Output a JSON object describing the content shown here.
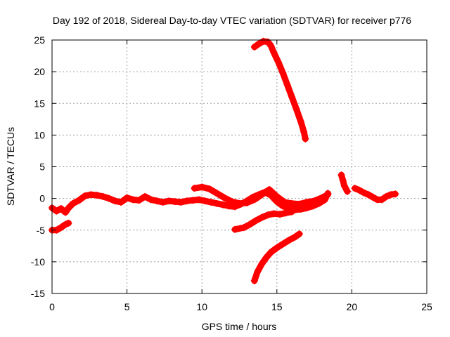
{
  "chart_data": {
    "type": "scatter",
    "title": "Day 192 of 2018, Sidereal Day-to-day VTEC variation (SDTVAR) for receiver p776",
    "xlabel": "GPS time / hours",
    "ylabel": "SDTVAR / TECUs",
    "xlim": [
      0,
      25
    ],
    "ylim": [
      -15,
      25
    ],
    "xticks": [
      0,
      5,
      10,
      15,
      20,
      25
    ],
    "yticks": [
      -15,
      -10,
      -5,
      0,
      5,
      10,
      15,
      20,
      25
    ],
    "grid": true,
    "marker": "+",
    "color": "#ff0000",
    "series": [
      {
        "points": [
          [
            0,
            -1.5
          ],
          [
            0.3,
            -2.0
          ],
          [
            0.6,
            -1.6
          ],
          [
            0.9,
            -2.2
          ],
          [
            1.1,
            -1.5
          ],
          [
            1.4,
            -0.8
          ],
          [
            1.8,
            -0.3
          ],
          [
            2.2,
            0.4
          ],
          [
            2.6,
            0.6
          ],
          [
            3.0,
            0.5
          ],
          [
            3.4,
            0.3
          ],
          [
            3.8,
            0.0
          ],
          [
            4.2,
            -0.4
          ],
          [
            4.6,
            -0.6
          ],
          [
            5.0,
            0.1
          ],
          [
            5.4,
            -0.2
          ],
          [
            5.8,
            -0.3
          ],
          [
            6.2,
            0.3
          ],
          [
            6.6,
            -0.2
          ],
          [
            7.0,
            -0.4
          ],
          [
            7.4,
            -0.6
          ],
          [
            7.8,
            -0.4
          ],
          [
            8.2,
            -0.5
          ],
          [
            8.6,
            -0.6
          ],
          [
            9.0,
            -0.4
          ],
          [
            9.4,
            -0.3
          ],
          [
            9.8,
            -0.2
          ],
          [
            10.2,
            -0.4
          ],
          [
            10.6,
            -0.6
          ],
          [
            11.0,
            -0.8
          ],
          [
            11.4,
            -1.0
          ],
          [
            11.8,
            -1.2
          ],
          [
            12.2,
            -1.3
          ],
          [
            12.6,
            -0.9
          ],
          [
            13.0,
            -0.4
          ],
          [
            13.4,
            0.2
          ],
          [
            13.8,
            0.6
          ],
          [
            14.2,
            1.0
          ],
          [
            14.6,
            0.5
          ],
          [
            15.0,
            -0.5
          ],
          [
            15.4,
            -1.2
          ],
          [
            15.8,
            -1.6
          ],
          [
            16.2,
            -1.8
          ],
          [
            16.6,
            -1.7
          ],
          [
            17.0,
            -1.5
          ],
          [
            17.4,
            -1.2
          ],
          [
            17.8,
            -0.8
          ],
          [
            18.2,
            -0.2
          ],
          [
            18.4,
            0.8
          ]
        ]
      },
      {
        "points": [
          [
            0,
            -5.0
          ],
          [
            0.3,
            -5.0
          ],
          [
            0.6,
            -4.6
          ],
          [
            0.9,
            -4.1
          ],
          [
            1.1,
            -3.9
          ]
        ]
      },
      {
        "points": [
          [
            9.5,
            1.6
          ],
          [
            10.0,
            1.8
          ],
          [
            10.5,
            1.5
          ],
          [
            11.0,
            0.8
          ],
          [
            11.5,
            0.1
          ],
          [
            12.0,
            -0.5
          ],
          [
            12.5,
            -0.8
          ],
          [
            13.0,
            -0.7
          ],
          [
            13.5,
            -0.2
          ],
          [
            14.0,
            0.6
          ],
          [
            14.5,
            1.4
          ],
          [
            15.0,
            0.3
          ],
          [
            15.5,
            -0.6
          ],
          [
            16.0,
            -0.8
          ],
          [
            16.5,
            -0.9
          ],
          [
            17.0,
            -0.6
          ],
          [
            17.5,
            -0.4
          ],
          [
            18.0,
            0.1
          ],
          [
            18.4,
            0.6
          ]
        ]
      },
      {
        "points": [
          [
            12.2,
            -4.9
          ],
          [
            12.8,
            -4.6
          ],
          [
            13.2,
            -4.1
          ],
          [
            13.6,
            -3.5
          ],
          [
            14.0,
            -3.0
          ],
          [
            14.4,
            -2.6
          ],
          [
            14.8,
            -2.4
          ],
          [
            15.2,
            -2.5
          ],
          [
            15.6,
            -2.3
          ],
          [
            16.0,
            -2.1
          ]
        ]
      },
      {
        "points": [
          [
            13.5,
            -13.0
          ],
          [
            13.7,
            -11.6
          ],
          [
            14.0,
            -10.3
          ],
          [
            14.3,
            -9.3
          ],
          [
            14.6,
            -8.5
          ],
          [
            15.0,
            -7.8
          ],
          [
            15.4,
            -7.2
          ],
          [
            15.8,
            -6.6
          ],
          [
            16.2,
            -6.1
          ],
          [
            16.5,
            -5.6
          ]
        ]
      },
      {
        "points": [
          [
            13.5,
            23.9
          ],
          [
            13.8,
            24.4
          ],
          [
            14.1,
            24.8
          ],
          [
            14.4,
            24.7
          ],
          [
            14.6,
            24.1
          ],
          [
            14.8,
            23.0
          ],
          [
            15.1,
            21.5
          ],
          [
            15.4,
            19.8
          ],
          [
            15.7,
            17.9
          ],
          [
            16.0,
            16.0
          ],
          [
            16.3,
            14.1
          ],
          [
            16.6,
            12.1
          ],
          [
            16.8,
            10.5
          ],
          [
            16.9,
            9.4
          ]
        ]
      },
      {
        "points": [
          [
            19.3,
            3.7
          ],
          [
            19.4,
            2.9
          ],
          [
            19.5,
            2.0
          ],
          [
            19.7,
            1.1
          ]
        ]
      },
      {
        "points": [
          [
            20.2,
            1.6
          ],
          [
            20.5,
            1.3
          ],
          [
            20.8,
            0.9
          ],
          [
            21.1,
            0.6
          ],
          [
            21.4,
            0.2
          ],
          [
            21.7,
            -0.2
          ],
          [
            22.0,
            -0.2
          ],
          [
            22.3,
            0.3
          ],
          [
            22.6,
            0.6
          ],
          [
            22.9,
            0.7
          ]
        ]
      }
    ]
  }
}
